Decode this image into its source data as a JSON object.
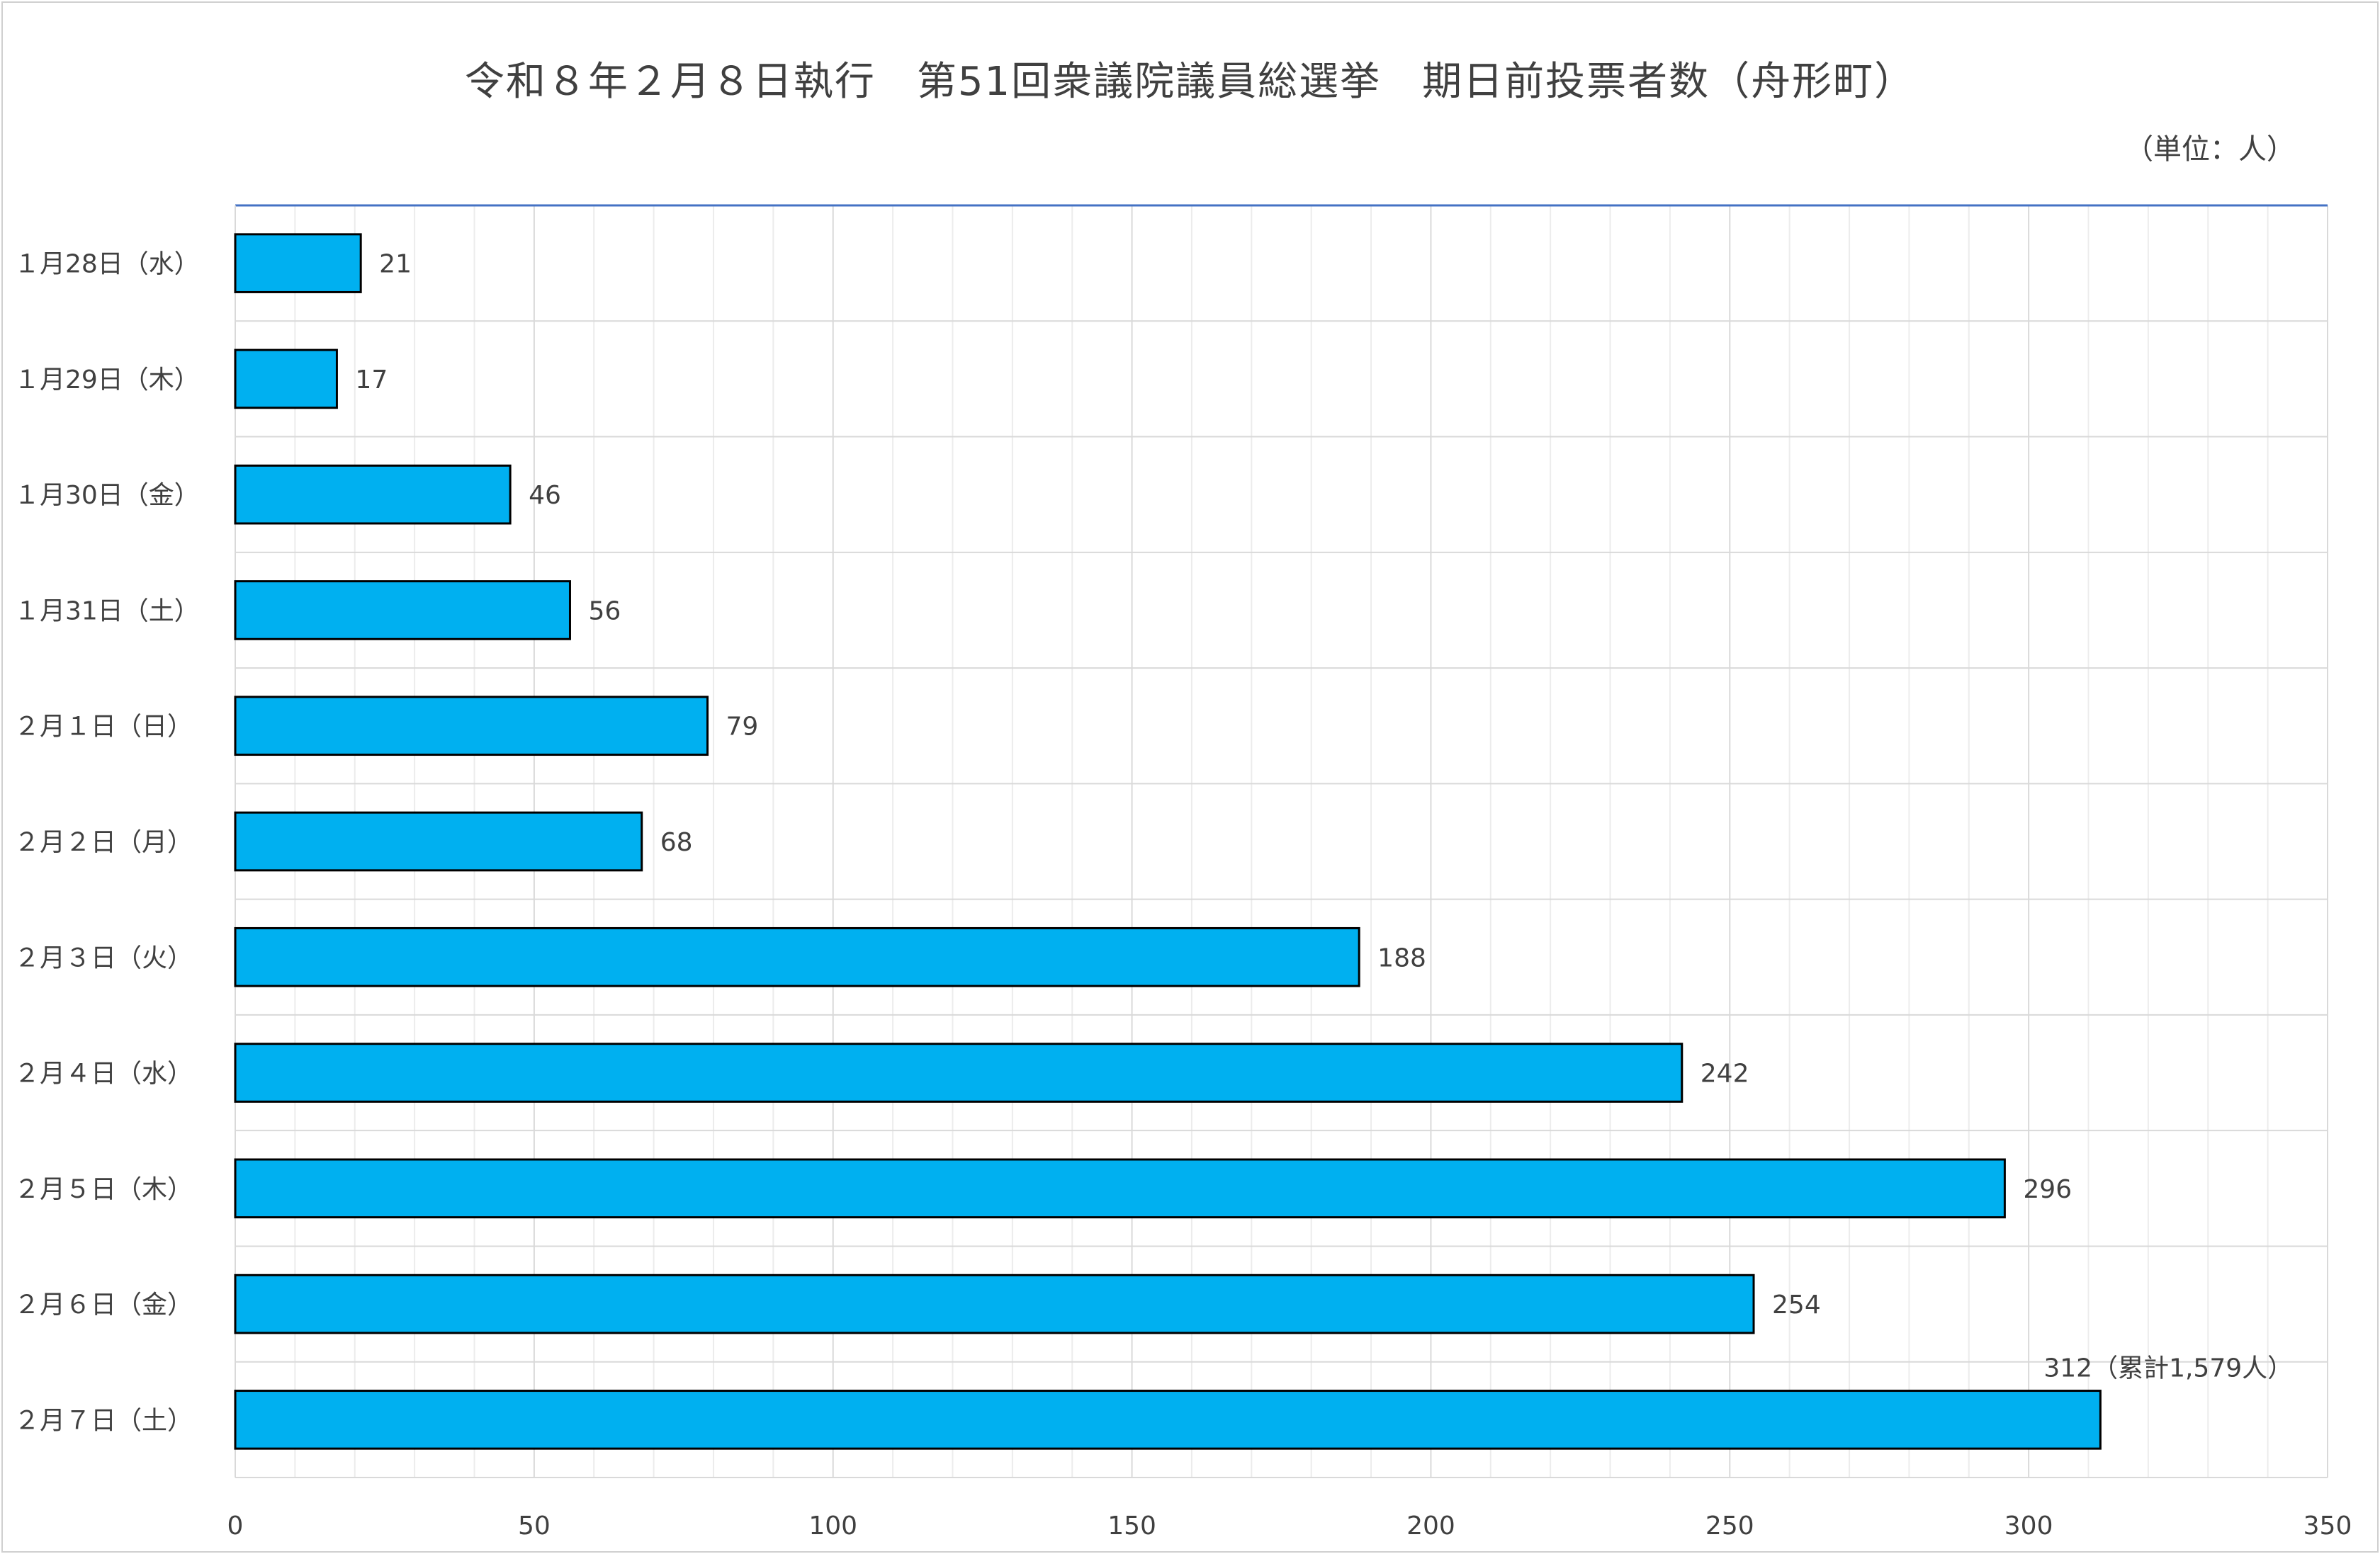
{
  "chart_data": {
    "type": "bar",
    "orientation": "horizontal",
    "title": "令和８年２月８日執行　第51回衆議院議員総選挙　期日前投票者数（舟形町）",
    "unit_label": "（単位：人）",
    "categories": [
      "１月28日（水）",
      "１月29日（木）",
      "１月30日（金）",
      "１月31日（土）",
      "２月１日（日）",
      "２月２日（月）",
      "２月３日（火）",
      "２月４日（水）",
      "２月５日（木）",
      "２月６日（金）",
      "２月７日（土）"
    ],
    "values": [
      21,
      17,
      46,
      56,
      79,
      68,
      188,
      242,
      296,
      254,
      312
    ],
    "data_labels": [
      "21",
      "17",
      "46",
      "56",
      "79",
      "68",
      "188",
      "242",
      "296",
      "254",
      "312（累計1,579人）"
    ],
    "xlim": [
      0,
      350
    ],
    "x_ticks": [
      "0",
      "50",
      "100",
      "150",
      "200",
      "250",
      "300",
      "350"
    ],
    "grid": true,
    "bar_color": "#00B0F0",
    "bar_border_color": "#000000"
  }
}
